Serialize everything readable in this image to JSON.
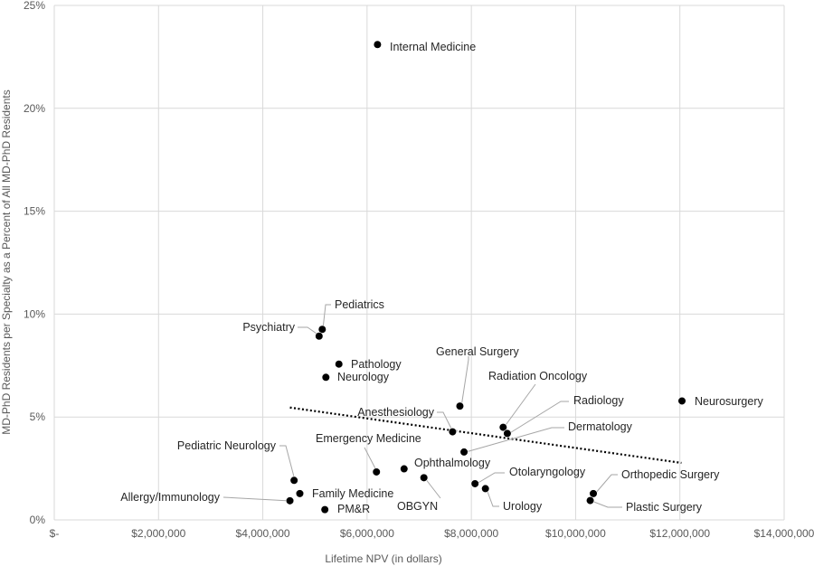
{
  "chart_data": {
    "type": "scatter",
    "title": "",
    "xlabel": "Lifetime NPV (in dollars)",
    "ylabel": "MD-PhD Residents per Specialty as a Percent of All MD-PhD Residents",
    "xlim": [
      0,
      14000000
    ],
    "ylim": [
      0,
      25
    ],
    "x_ticks": [
      {
        "value": 0,
        "label": "$-"
      },
      {
        "value": 2000000,
        "label": "$2,000,000"
      },
      {
        "value": 4000000,
        "label": "$4,000,000"
      },
      {
        "value": 6000000,
        "label": "$6,000,000"
      },
      {
        "value": 8000000,
        "label": "$8,000,000"
      },
      {
        "value": 10000000,
        "label": "$10,000,000"
      },
      {
        "value": 12000000,
        "label": "$12,000,000"
      },
      {
        "value": 14000000,
        "label": "$14,000,000"
      }
    ],
    "y_ticks": [
      {
        "value": 0,
        "label": "0%"
      },
      {
        "value": 5,
        "label": "5%"
      },
      {
        "value": 10,
        "label": "10%"
      },
      {
        "value": 15,
        "label": "15%"
      },
      {
        "value": 20,
        "label": "20%"
      },
      {
        "value": 25,
        "label": "25%"
      }
    ],
    "grid": true,
    "legend": "none",
    "marker_color": "#000000",
    "points": [
      {
        "label": "Internal Medicine",
        "x": 6200000,
        "y": 23.1
      },
      {
        "label": "Pediatrics",
        "x": 5140000,
        "y": 9.26
      },
      {
        "label": "Psychiatry",
        "x": 5080000,
        "y": 8.93
      },
      {
        "label": "Pathology",
        "x": 5460000,
        "y": 7.57
      },
      {
        "label": "Neurology",
        "x": 5210000,
        "y": 6.93
      },
      {
        "label": "General Surgery",
        "x": 7780000,
        "y": 5.53
      },
      {
        "label": "Radiation Oncology",
        "x": 8610000,
        "y": 4.5
      },
      {
        "label": "Radiology",
        "x": 8690000,
        "y": 4.2
      },
      {
        "label": "Neurosurgery",
        "x": 12040000,
        "y": 5.78
      },
      {
        "label": "Anesthesiology",
        "x": 7640000,
        "y": 4.28
      },
      {
        "label": "Dermatology",
        "x": 7860000,
        "y": 3.3
      },
      {
        "label": "Pediatric Neurology",
        "x": 4600000,
        "y": 1.92
      },
      {
        "label": "Emergency Medicine",
        "x": 6180000,
        "y": 2.33
      },
      {
        "label": "Ophthalmology",
        "x": 6710000,
        "y": 2.48
      },
      {
        "label": "OBGYN",
        "x": 7090000,
        "y": 2.05
      },
      {
        "label": "Otolaryngology",
        "x": 8070000,
        "y": 1.76
      },
      {
        "label": "Urology",
        "x": 8270000,
        "y": 1.52
      },
      {
        "label": "Orthopedic Surgery",
        "x": 10340000,
        "y": 1.28
      },
      {
        "label": "Plastic Surgery",
        "x": 10280000,
        "y": 0.94
      },
      {
        "label": "Allergy/Immunology",
        "x": 4520000,
        "y": 0.93
      },
      {
        "label": "Family Medicine",
        "x": 4710000,
        "y": 1.28
      },
      {
        "label": "PM&R",
        "x": 5190000,
        "y": 0.5
      }
    ],
    "trendline": {
      "type": "linear",
      "style": "dotted",
      "x": [
        4520000,
        12030000
      ],
      "y": [
        5.46,
        2.77
      ]
    }
  }
}
